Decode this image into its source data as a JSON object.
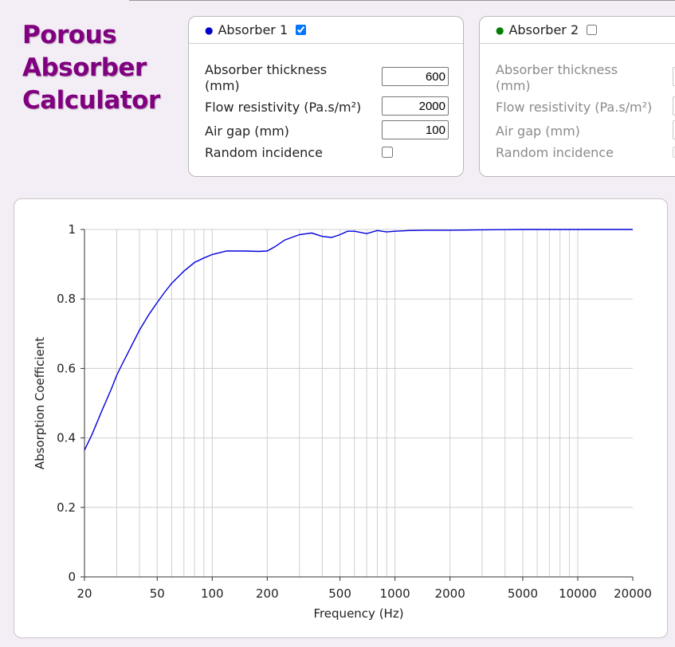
{
  "app": {
    "title_lines": [
      "Porous",
      "Absorber",
      "Calculator"
    ]
  },
  "absorber1": {
    "title": "Absorber 1",
    "enabled": true,
    "dot_color": "#0000cc",
    "thickness_label_line1": "Absorber thickness",
    "thickness_label_line2": "(mm)",
    "thickness_value": "600",
    "flow_label": "Flow resistivity (Pa.s/m²)",
    "flow_value": "2000",
    "airgap_label": "Air gap (mm)",
    "airgap_value": "100",
    "random_label": "Random incidence",
    "random_checked": false
  },
  "absorber2": {
    "title": "Absorber 2",
    "enabled": false,
    "dot_color": "#008000",
    "thickness_label_line1": "Absorber thickness",
    "thickness_label_line2": "(mm)",
    "flow_label": "Flow resistivity (Pa.s/m²)",
    "airgap_label": "Air gap (mm)",
    "random_label": "Random incidence",
    "random_checked": false
  },
  "chart_data": {
    "type": "line",
    "xlabel": "Frequency (Hz)",
    "ylabel": "Absorption Coefficient",
    "xscale": "log",
    "xlim": [
      20,
      20000
    ],
    "ylim": [
      0,
      1
    ],
    "grid": true,
    "x_ticks": [
      20,
      50,
      100,
      200,
      500,
      1000,
      2000,
      5000,
      10000,
      20000
    ],
    "x_tick_labels": [
      "20",
      "50",
      "100",
      "200",
      "500",
      "1000",
      "2000",
      "5000",
      "10000",
      "20000"
    ],
    "y_ticks": [
      0,
      0.2,
      0.4,
      0.6,
      0.8,
      1
    ],
    "y_tick_labels": [
      "0",
      "0.2",
      "0.4",
      "0.6",
      "0.8",
      "1"
    ],
    "series": [
      {
        "color": "#0000dd",
        "x": [
          20,
          22,
          25,
          28,
          30,
          32,
          35,
          40,
          45,
          50,
          55,
          60,
          70,
          80,
          90,
          100,
          120,
          150,
          180,
          200,
          220,
          250,
          300,
          350,
          400,
          450,
          500,
          550,
          600,
          700,
          800,
          900,
          1000,
          1200,
          1500,
          2000,
          3000,
          5000,
          10000,
          20000
        ],
        "y": [
          0.365,
          0.41,
          0.48,
          0.54,
          0.58,
          0.61,
          0.65,
          0.71,
          0.755,
          0.79,
          0.82,
          0.845,
          0.88,
          0.905,
          0.918,
          0.928,
          0.938,
          0.938,
          0.937,
          0.938,
          0.95,
          0.97,
          0.985,
          0.99,
          0.98,
          0.977,
          0.985,
          0.995,
          0.995,
          0.988,
          0.997,
          0.993,
          0.995,
          0.997,
          0.998,
          0.998,
          0.999,
          1.0,
          1.0,
          1.0
        ]
      }
    ]
  }
}
